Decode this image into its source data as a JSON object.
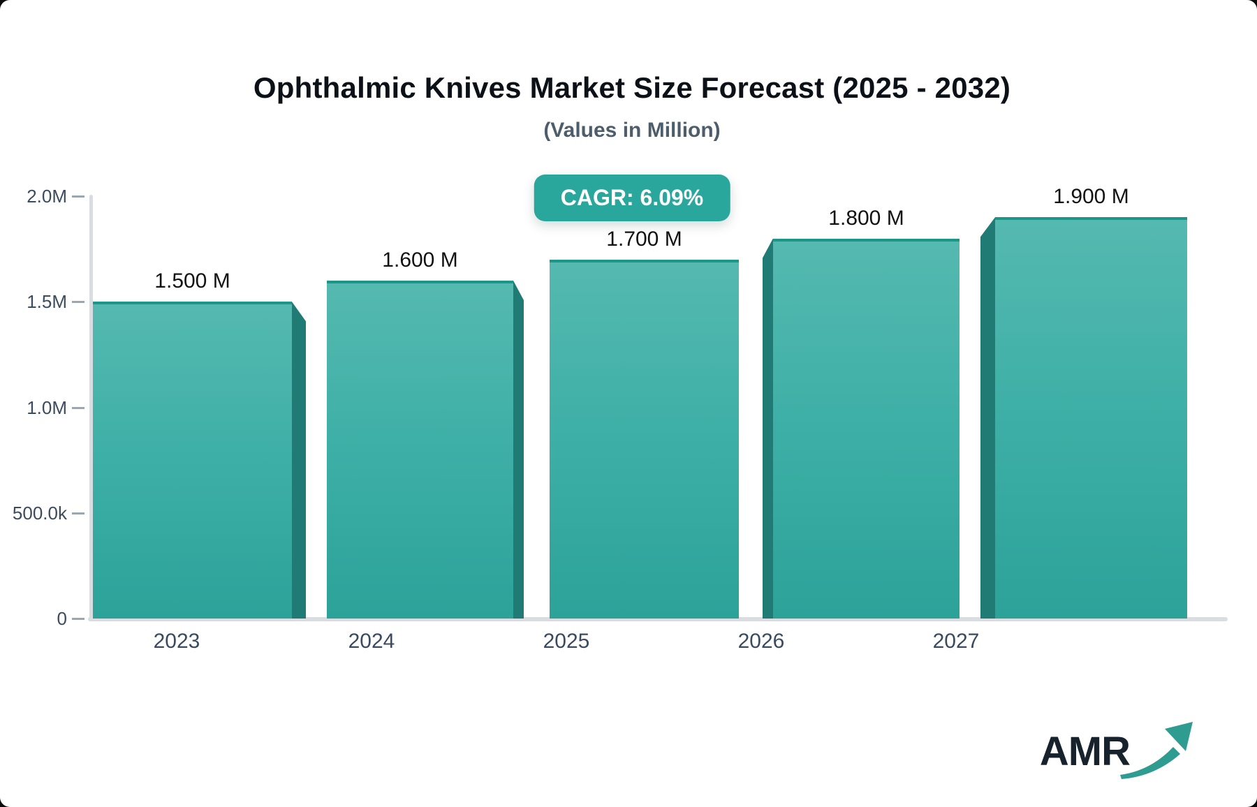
{
  "header": {
    "title": "Ophthalmic Knives Market Size Forecast (2025 - 2032)",
    "subtitle": "(Values in Million)"
  },
  "badge": {
    "label": "CAGR: 6.09%",
    "bg_color": "#2aa79c",
    "text_color": "#ffffff"
  },
  "chart_data": {
    "type": "bar",
    "title": "Ophthalmic Knives Market Size Forecast (2025 - 2032)",
    "subtitle": "(Values in Million)",
    "unit": "Million",
    "categories": [
      "2023",
      "2024",
      "2025",
      "2026",
      "2027"
    ],
    "values": [
      1500000,
      1600000,
      1700000,
      1800000,
      1900000
    ],
    "value_labels": [
      "1.500 M",
      "1.600 M",
      "1.700 M",
      "1.800 M",
      "1.900 M"
    ],
    "ylim": [
      0,
      2000000
    ],
    "ytick_labels": [
      "2.0M",
      "1.5M",
      "1.0M",
      "500.0k",
      "0"
    ],
    "grid": "off",
    "legend": "none",
    "annotation_cagr": "CAGR: 6.09%",
    "bar_color_top": "#55b9b0",
    "bar_color_bottom": "#2ca299",
    "bar_top_border_color": "#1d968a",
    "bar_side_color": "#1f7b73",
    "axis_line_color": "#d9dce1",
    "axis_text_color": "#3d4c5c"
  },
  "logo": {
    "text": "AMR",
    "text_color": "#17222c",
    "arrow_color": "#2f9c92"
  }
}
